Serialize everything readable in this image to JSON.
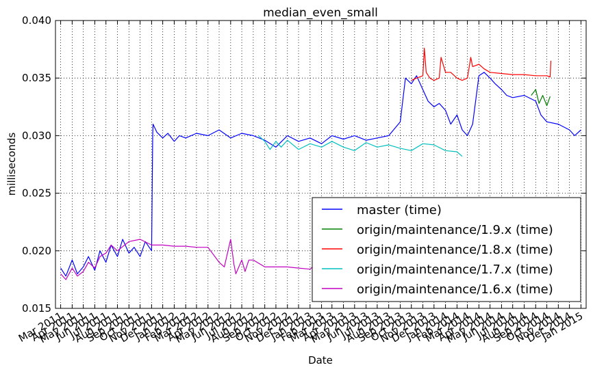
{
  "chart_data": {
    "type": "line",
    "title": "median_even_small",
    "xlabel": "Date",
    "ylabel": "milliseconds",
    "ylim": [
      0.015,
      0.04
    ],
    "yticks": [
      "0.015",
      "0.020",
      "0.025",
      "0.030",
      "0.035",
      "0.040"
    ],
    "xlim": [
      "2011-02-15",
      "2015-01-15"
    ],
    "xtick_labels": [
      "Mar 2011",
      "Apr 2011",
      "May 2011",
      "Jun 2011",
      "Jul 2011",
      "Aug 2011",
      "Sep 2011",
      "Oct 2011",
      "Nov 2011",
      "Dec 2011",
      "Jan 2012",
      "Feb 2012",
      "Mar 2012",
      "Apr 2012",
      "May 2012",
      "Jun 2012",
      "Jul 2012",
      "Aug 2012",
      "Sep 2012",
      "Oct 2012",
      "Nov 2012",
      "Dec 2012",
      "Jan 2013",
      "Feb 2013",
      "Mar 2013",
      "Apr 2013",
      "May 2013",
      "Jun 2013",
      "Jul 2013",
      "Aug 2013",
      "Sep 2013",
      "Oct 2013",
      "Nov 2013",
      "Dec 2013",
      "Jan 2014",
      "Feb 2014",
      "Mar 2014",
      "Apr 2014",
      "May 2014",
      "Jun 2014",
      "Jul 2014",
      "Aug 2014",
      "Sep 2014",
      "Oct 2014",
      "Nov 2014",
      "Dec 2014",
      "Jan 2015"
    ],
    "grid": true,
    "legend_position": "lower-right",
    "series": [
      {
        "name": "master (time)",
        "color": "#0000ff",
        "x": [
          "2011-03-01",
          "2011-03-15",
          "2011-04-01",
          "2011-04-15",
          "2011-05-01",
          "2011-05-15",
          "2011-06-01",
          "2011-06-15",
          "2011-07-01",
          "2011-07-15",
          "2011-08-01",
          "2011-08-15",
          "2011-09-01",
          "2011-09-15",
          "2011-10-01",
          "2011-10-15",
          "2011-11-01",
          "2011-11-04",
          "2011-11-05",
          "2011-11-15",
          "2011-12-01",
          "2011-12-15",
          "2012-01-01",
          "2012-01-15",
          "2012-02-01",
          "2012-03-01",
          "2012-04-01",
          "2012-05-01",
          "2012-06-01",
          "2012-07-01",
          "2012-08-01",
          "2012-09-01",
          "2012-10-01",
          "2012-11-01",
          "2012-12-01",
          "2013-01-01",
          "2013-02-01",
          "2013-03-01",
          "2013-04-01",
          "2013-05-01",
          "2013-06-01",
          "2013-07-01",
          "2013-08-01",
          "2013-09-01",
          "2013-09-15",
          "2013-10-01",
          "2013-10-15",
          "2013-11-01",
          "2013-11-15",
          "2013-12-01",
          "2013-12-15",
          "2014-01-01",
          "2014-01-15",
          "2014-02-01",
          "2014-02-15",
          "2014-03-01",
          "2014-03-15",
          "2014-04-01",
          "2014-04-15",
          "2014-05-01",
          "2014-05-15",
          "2014-06-01",
          "2014-06-15",
          "2014-07-01",
          "2014-08-01",
          "2014-09-01",
          "2014-09-15",
          "2014-10-01",
          "2014-11-01",
          "2014-12-01",
          "2014-12-15",
          "2015-01-01"
        ],
        "y": [
          0.0185,
          0.0178,
          0.0192,
          0.018,
          0.0186,
          0.0195,
          0.0183,
          0.02,
          0.019,
          0.0205,
          0.0195,
          0.021,
          0.0198,
          0.0203,
          0.0195,
          0.0208,
          0.02,
          0.03,
          0.031,
          0.0303,
          0.0298,
          0.0302,
          0.0295,
          0.03,
          0.0298,
          0.0302,
          0.03,
          0.0305,
          0.0298,
          0.0302,
          0.03,
          0.0296,
          0.029,
          0.03,
          0.0295,
          0.0298,
          0.0293,
          0.03,
          0.0297,
          0.03,
          0.0296,
          0.0298,
          0.03,
          0.0312,
          0.035,
          0.0345,
          0.0352,
          0.034,
          0.033,
          0.0325,
          0.0328,
          0.0322,
          0.031,
          0.0318,
          0.0305,
          0.03,
          0.031,
          0.0352,
          0.0355,
          0.035,
          0.0345,
          0.034,
          0.0335,
          0.0333,
          0.0335,
          0.033,
          0.0318,
          0.0312,
          0.031,
          0.0305,
          0.03,
          0.0305
        ]
      },
      {
        "name": "origin/maintenance/1.9.x (time)",
        "color": "#008000",
        "x": [
          "2014-08-20",
          "2014-09-01",
          "2014-09-10",
          "2014-09-20",
          "2014-10-01",
          "2014-10-10"
        ],
        "y": [
          0.0335,
          0.034,
          0.0328,
          0.0335,
          0.0326,
          0.0334
        ]
      },
      {
        "name": "origin/maintenance/1.8.x (time)",
        "color": "#ff0000",
        "x": [
          "2013-10-01",
          "2013-10-15",
          "2013-11-01",
          "2013-11-05",
          "2013-11-10",
          "2013-11-20",
          "2013-12-01",
          "2013-12-15",
          "2013-12-20",
          "2014-01-01",
          "2014-01-15",
          "2014-02-01",
          "2014-02-15",
          "2014-03-01",
          "2014-03-10",
          "2014-03-15",
          "2014-04-01",
          "2014-04-15",
          "2014-05-01",
          "2014-06-01",
          "2014-07-01",
          "2014-08-01",
          "2014-09-01",
          "2014-10-01",
          "2014-10-10",
          "2014-10-12"
        ],
        "y": [
          0.0348,
          0.035,
          0.0352,
          0.0376,
          0.0355,
          0.035,
          0.0348,
          0.035,
          0.0368,
          0.0355,
          0.0355,
          0.035,
          0.0348,
          0.035,
          0.0368,
          0.036,
          0.0362,
          0.0358,
          0.0355,
          0.0354,
          0.0353,
          0.0353,
          0.0352,
          0.0352,
          0.0351,
          0.0365
        ]
      },
      {
        "name": "origin/maintenance/1.7.x (time)",
        "color": "#00bfbf",
        "x": [
          "2012-08-15",
          "2012-09-01",
          "2012-09-15",
          "2012-10-01",
          "2012-10-15",
          "2012-11-01",
          "2012-12-01",
          "2013-01-01",
          "2013-02-01",
          "2013-03-01",
          "2013-04-01",
          "2013-05-01",
          "2013-06-01",
          "2013-07-01",
          "2013-08-01",
          "2013-09-01",
          "2013-10-01",
          "2013-11-01",
          "2013-12-01",
          "2014-01-01",
          "2014-02-01",
          "2014-02-15"
        ],
        "y": [
          0.03,
          0.0295,
          0.0288,
          0.0295,
          0.029,
          0.0296,
          0.0288,
          0.0293,
          0.029,
          0.0295,
          0.029,
          0.0287,
          0.0294,
          0.029,
          0.0292,
          0.0289,
          0.0287,
          0.0293,
          0.0292,
          0.0287,
          0.0286,
          0.0282
        ]
      },
      {
        "name": "origin/maintenance/1.6.x (time)",
        "color": "#bf00bf",
        "x": [
          "2011-03-01",
          "2011-03-15",
          "2011-04-01",
          "2011-04-15",
          "2011-05-01",
          "2011-05-15",
          "2011-06-01",
          "2011-06-15",
          "2011-07-01",
          "2011-07-15",
          "2011-08-01",
          "2011-09-01",
          "2011-10-01",
          "2011-11-01",
          "2011-12-01",
          "2012-01-01",
          "2012-02-01",
          "2012-03-01",
          "2012-04-01",
          "2012-05-01",
          "2012-05-15",
          "2012-06-01",
          "2012-06-10",
          "2012-06-15",
          "2012-07-01",
          "2012-07-10",
          "2012-07-20",
          "2012-08-01",
          "2012-09-01",
          "2012-10-01",
          "2012-11-01",
          "2012-12-01",
          "2013-01-01",
          "2013-01-15"
        ],
        "y": [
          0.018,
          0.0175,
          0.0185,
          0.0178,
          0.0182,
          0.019,
          0.0185,
          0.0195,
          0.0198,
          0.0205,
          0.02,
          0.0208,
          0.021,
          0.0205,
          0.0205,
          0.0204,
          0.0204,
          0.0203,
          0.0203,
          0.019,
          0.0186,
          0.021,
          0.0188,
          0.018,
          0.0192,
          0.0182,
          0.0192,
          0.0192,
          0.0186,
          0.0186,
          0.0186,
          0.0185,
          0.0184,
          0.0188
        ]
      }
    ]
  }
}
